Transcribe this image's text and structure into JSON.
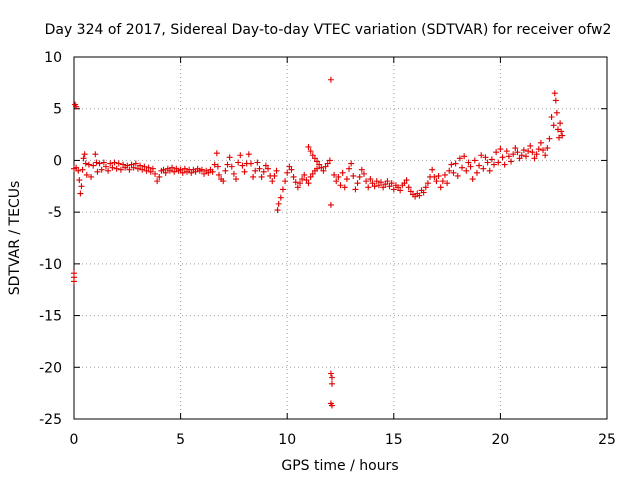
{
  "chart_data": {
    "type": "scatter",
    "title": "Day 324 of 2017, Sidereal Day-to-day VTEC variation (SDTVAR) for receiver ofw2",
    "xlabel": "GPS time / hours",
    "ylabel": "SDTVAR / TECUs",
    "xlim": [
      0,
      25
    ],
    "ylim": [
      -25,
      10
    ],
    "x_ticks": [
      0,
      5,
      10,
      15,
      20,
      25
    ],
    "x_tick_labels": [
      "0",
      "5",
      "10",
      "15",
      "20",
      "25"
    ],
    "y_ticks": [
      10,
      5,
      0,
      -5,
      -10,
      -15,
      -20,
      -25
    ],
    "y_tick_labels": [
      "10",
      "5",
      "0",
      "-5",
      "-10",
      "-15",
      "-20",
      "-25"
    ],
    "grid": true,
    "marker": "+",
    "marker_color": "#e00000",
    "series": [
      {
        "name": "ofw2",
        "points": [
          [
            0.05,
            5.4
          ],
          [
            0.1,
            5.2
          ],
          [
            0.0,
            -10.9
          ],
          [
            0.0,
            -11.3
          ],
          [
            0.0,
            -11.7
          ],
          [
            0.0,
            -0.8
          ],
          [
            0.1,
            -0.7
          ],
          [
            0.2,
            -1.0
          ],
          [
            0.25,
            -1.9
          ],
          [
            0.3,
            -3.2
          ],
          [
            0.35,
            -2.5
          ],
          [
            0.4,
            -0.9
          ],
          [
            0.45,
            0.2
          ],
          [
            0.5,
            0.6
          ],
          [
            0.55,
            -0.3
          ],
          [
            0.6,
            -1.4
          ],
          [
            0.7,
            -0.4
          ],
          [
            0.8,
            -1.6
          ],
          [
            0.9,
            -0.5
          ],
          [
            1.0,
            0.6
          ],
          [
            1.05,
            -0.2
          ],
          [
            1.1,
            -1.1
          ],
          [
            1.2,
            -0.3
          ],
          [
            1.3,
            -0.9
          ],
          [
            1.4,
            -0.2
          ],
          [
            1.5,
            -0.6
          ],
          [
            1.6,
            -1.0
          ],
          [
            1.7,
            -0.3
          ],
          [
            1.8,
            -0.7
          ],
          [
            1.9,
            -0.2
          ],
          [
            2.0,
            -0.8
          ],
          [
            2.1,
            -0.3
          ],
          [
            2.2,
            -0.9
          ],
          [
            2.3,
            -0.4
          ],
          [
            2.4,
            -0.7
          ],
          [
            2.5,
            -0.5
          ],
          [
            2.6,
            -0.9
          ],
          [
            2.7,
            -0.4
          ],
          [
            2.8,
            -0.7
          ],
          [
            2.9,
            -0.3
          ],
          [
            3.0,
            -0.8
          ],
          [
            3.1,
            -0.5
          ],
          [
            3.2,
            -0.9
          ],
          [
            3.3,
            -0.6
          ],
          [
            3.4,
            -1.0
          ],
          [
            3.5,
            -0.7
          ],
          [
            3.6,
            -1.1
          ],
          [
            3.7,
            -0.8
          ],
          [
            3.8,
            -1.3
          ],
          [
            3.9,
            -2.0
          ],
          [
            4.0,
            -1.6
          ],
          [
            4.1,
            -1.0
          ],
          [
            4.2,
            -0.9
          ],
          [
            4.3,
            -1.2
          ],
          [
            4.4,
            -0.8
          ],
          [
            4.5,
            -1.0
          ],
          [
            4.6,
            -0.7
          ],
          [
            4.7,
            -1.1
          ],
          [
            4.8,
            -0.8
          ],
          [
            4.9,
            -1.0
          ],
          [
            5.0,
            -0.9
          ],
          [
            5.1,
            -1.2
          ],
          [
            5.2,
            -0.8
          ],
          [
            5.3,
            -1.1
          ],
          [
            5.4,
            -0.9
          ],
          [
            5.5,
            -1.2
          ],
          [
            5.6,
            -0.9
          ],
          [
            5.7,
            -1.1
          ],
          [
            5.8,
            -0.8
          ],
          [
            5.9,
            -1.0
          ],
          [
            6.0,
            -0.9
          ],
          [
            6.1,
            -1.3
          ],
          [
            6.2,
            -1.0
          ],
          [
            6.3,
            -1.2
          ],
          [
            6.4,
            -0.9
          ],
          [
            6.5,
            -1.1
          ],
          [
            6.6,
            -0.4
          ],
          [
            6.7,
            0.7
          ],
          [
            6.75,
            -0.6
          ],
          [
            6.8,
            -1.4
          ],
          [
            6.9,
            -1.8
          ],
          [
            7.0,
            -2.0
          ],
          [
            7.1,
            -1.0
          ],
          [
            7.2,
            -0.4
          ],
          [
            7.3,
            0.3
          ],
          [
            7.4,
            -0.6
          ],
          [
            7.5,
            -1.3
          ],
          [
            7.6,
            -1.8
          ],
          [
            7.7,
            -0.2
          ],
          [
            7.8,
            0.5
          ],
          [
            7.9,
            -0.5
          ],
          [
            8.0,
            -1.1
          ],
          [
            8.1,
            -0.3
          ],
          [
            8.2,
            0.6
          ],
          [
            8.3,
            -0.3
          ],
          [
            8.4,
            -1.6
          ],
          [
            8.5,
            -1.0
          ],
          [
            8.6,
            -0.2
          ],
          [
            8.7,
            -0.8
          ],
          [
            8.8,
            -1.6
          ],
          [
            8.9,
            -1.1
          ],
          [
            9.0,
            -0.5
          ],
          [
            9.1,
            -0.8
          ],
          [
            9.2,
            -1.5
          ],
          [
            9.3,
            -2.0
          ],
          [
            9.4,
            -1.5
          ],
          [
            9.5,
            -1.0
          ],
          [
            9.55,
            -4.8
          ],
          [
            9.6,
            -4.2
          ],
          [
            9.7,
            -3.6
          ],
          [
            9.8,
            -2.8
          ],
          [
            9.9,
            -2.0
          ],
          [
            10.0,
            -1.2
          ],
          [
            10.1,
            -0.6
          ],
          [
            10.2,
            -0.9
          ],
          [
            10.3,
            -1.6
          ],
          [
            10.4,
            -2.1
          ],
          [
            10.5,
            -2.6
          ],
          [
            10.6,
            -2.2
          ],
          [
            10.7,
            -1.8
          ],
          [
            10.8,
            -1.4
          ],
          [
            10.9,
            -1.9
          ],
          [
            11.0,
            -2.2
          ],
          [
            11.1,
            -1.6
          ],
          [
            11.2,
            -1.3
          ],
          [
            11.3,
            -1.0
          ],
          [
            11.4,
            -0.8
          ],
          [
            11.0,
            1.3
          ],
          [
            11.1,
            0.9
          ],
          [
            11.2,
            0.5
          ],
          [
            11.3,
            0.2
          ],
          [
            11.4,
            -0.1
          ],
          [
            11.5,
            -0.4
          ],
          [
            11.6,
            -0.7
          ],
          [
            11.7,
            -1.0
          ],
          [
            11.8,
            -0.6
          ],
          [
            11.9,
            -0.3
          ],
          [
            12.0,
            0.0
          ],
          [
            12.05,
            7.8
          ],
          [
            12.05,
            -4.3
          ],
          [
            12.05,
            -20.6
          ],
          [
            12.1,
            -21.0
          ],
          [
            12.1,
            -21.6
          ],
          [
            12.05,
            -23.5
          ],
          [
            12.1,
            -23.7
          ],
          [
            12.2,
            -1.4
          ],
          [
            12.3,
            -2.0
          ],
          [
            12.4,
            -1.6
          ],
          [
            12.5,
            -2.4
          ],
          [
            12.6,
            -1.2
          ],
          [
            12.7,
            -2.6
          ],
          [
            12.8,
            -1.8
          ],
          [
            12.9,
            -0.8
          ],
          [
            13.0,
            -0.3
          ],
          [
            13.1,
            -1.5
          ],
          [
            13.2,
            -2.8
          ],
          [
            13.3,
            -2.2
          ],
          [
            13.4,
            -1.6
          ],
          [
            13.5,
            -0.9
          ],
          [
            13.6,
            -1.3
          ],
          [
            13.7,
            -2.0
          ],
          [
            13.8,
            -2.6
          ],
          [
            13.9,
            -1.8
          ],
          [
            14.0,
            -2.2
          ],
          [
            14.1,
            -2.5
          ],
          [
            14.2,
            -2.0
          ],
          [
            14.3,
            -2.4
          ],
          [
            14.4,
            -2.1
          ],
          [
            14.5,
            -2.6
          ],
          [
            14.6,
            -2.3
          ],
          [
            14.7,
            -2.0
          ],
          [
            14.8,
            -2.5
          ],
          [
            14.9,
            -2.2
          ],
          [
            15.0,
            -2.8
          ],
          [
            15.1,
            -2.4
          ],
          [
            15.2,
            -2.6
          ],
          [
            15.3,
            -2.9
          ],
          [
            15.4,
            -2.4
          ],
          [
            15.5,
            -2.2
          ],
          [
            15.6,
            -1.9
          ],
          [
            15.7,
            -2.6
          ],
          [
            15.8,
            -3.0
          ],
          [
            15.9,
            -3.3
          ],
          [
            16.0,
            -3.5
          ],
          [
            16.1,
            -3.2
          ],
          [
            16.2,
            -3.4
          ],
          [
            16.3,
            -2.9
          ],
          [
            16.4,
            -3.1
          ],
          [
            16.5,
            -2.6
          ],
          [
            16.6,
            -2.2
          ],
          [
            16.7,
            -1.6
          ],
          [
            16.8,
            -0.9
          ],
          [
            16.9,
            -1.6
          ],
          [
            17.0,
            -2.0
          ],
          [
            17.1,
            -1.5
          ],
          [
            17.2,
            -2.6
          ],
          [
            17.3,
            -2.0
          ],
          [
            17.4,
            -1.4
          ],
          [
            17.5,
            -2.2
          ],
          [
            17.6,
            -1.0
          ],
          [
            17.7,
            -0.4
          ],
          [
            17.8,
            -1.2
          ],
          [
            17.9,
            -0.3
          ],
          [
            18.0,
            -1.5
          ],
          [
            18.1,
            0.2
          ],
          [
            18.2,
            -0.7
          ],
          [
            18.3,
            0.4
          ],
          [
            18.4,
            -1.0
          ],
          [
            18.5,
            -0.2
          ],
          [
            18.6,
            -0.6
          ],
          [
            18.7,
            -1.8
          ],
          [
            18.8,
            0.0
          ],
          [
            18.9,
            -1.2
          ],
          [
            19.0,
            -0.5
          ],
          [
            19.1,
            0.5
          ],
          [
            19.2,
            -0.8
          ],
          [
            19.3,
            0.3
          ],
          [
            19.4,
            -0.2
          ],
          [
            19.5,
            -1.0
          ],
          [
            19.6,
            0.1
          ],
          [
            19.7,
            -0.4
          ],
          [
            19.8,
            0.8
          ],
          [
            19.9,
            -0.2
          ],
          [
            20.0,
            1.1
          ],
          [
            20.1,
            0.3
          ],
          [
            20.2,
            -0.4
          ],
          [
            20.3,
            0.9
          ],
          [
            20.4,
            0.4
          ],
          [
            20.5,
            -0.1
          ],
          [
            20.6,
            0.6
          ],
          [
            20.7,
            1.2
          ],
          [
            20.8,
            0.8
          ],
          [
            20.9,
            0.2
          ],
          [
            21.0,
            0.5
          ],
          [
            21.1,
            1.0
          ],
          [
            21.2,
            0.4
          ],
          [
            21.3,
            0.9
          ],
          [
            21.4,
            1.4
          ],
          [
            21.5,
            0.8
          ],
          [
            21.6,
            0.2
          ],
          [
            21.7,
            0.6
          ],
          [
            21.8,
            1.1
          ],
          [
            21.9,
            1.7
          ],
          [
            22.0,
            1.0
          ],
          [
            22.1,
            0.5
          ],
          [
            22.2,
            1.2
          ],
          [
            22.3,
            2.1
          ],
          [
            22.4,
            4.2
          ],
          [
            22.5,
            3.4
          ],
          [
            22.55,
            6.5
          ],
          [
            22.6,
            5.8
          ],
          [
            22.65,
            4.6
          ],
          [
            22.7,
            3.0
          ],
          [
            22.75,
            2.2
          ],
          [
            22.8,
            3.6
          ],
          [
            22.85,
            2.8
          ],
          [
            22.9,
            2.4
          ]
        ]
      }
    ]
  }
}
